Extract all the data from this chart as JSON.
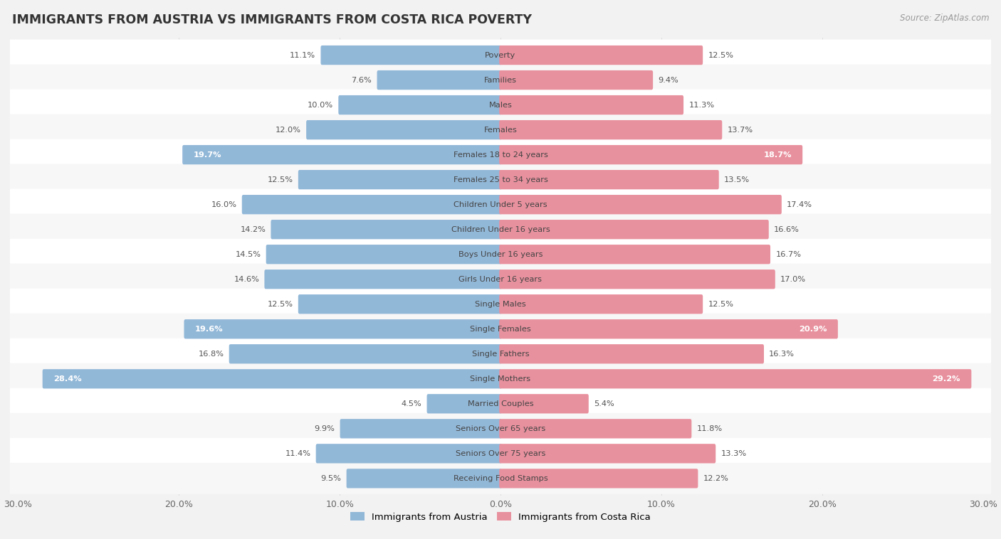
{
  "title": "IMMIGRANTS FROM AUSTRIA VS IMMIGRANTS FROM COSTA RICA POVERTY",
  "source": "Source: ZipAtlas.com",
  "categories": [
    "Poverty",
    "Families",
    "Males",
    "Females",
    "Females 18 to 24 years",
    "Females 25 to 34 years",
    "Children Under 5 years",
    "Children Under 16 years",
    "Boys Under 16 years",
    "Girls Under 16 years",
    "Single Males",
    "Single Females",
    "Single Fathers",
    "Single Mothers",
    "Married Couples",
    "Seniors Over 65 years",
    "Seniors Over 75 years",
    "Receiving Food Stamps"
  ],
  "austria_values": [
    11.1,
    7.6,
    10.0,
    12.0,
    19.7,
    12.5,
    16.0,
    14.2,
    14.5,
    14.6,
    12.5,
    19.6,
    16.8,
    28.4,
    4.5,
    9.9,
    11.4,
    9.5
  ],
  "costarica_values": [
    12.5,
    9.4,
    11.3,
    13.7,
    18.7,
    13.5,
    17.4,
    16.6,
    16.7,
    17.0,
    12.5,
    20.9,
    16.3,
    29.2,
    5.4,
    11.8,
    13.3,
    12.2
  ],
  "austria_color": "#92b8d8",
  "costarica_color": "#e8919e",
  "page_bg": "#f2f2f2",
  "row_bg": "#ffffff",
  "alt_row_bg": "#f7f7f7",
  "max_val": 30.0,
  "label_austria": "Immigrants from Austria",
  "label_costarica": "Immigrants from Costa Rica",
  "inside_label_threshold": 18.0
}
